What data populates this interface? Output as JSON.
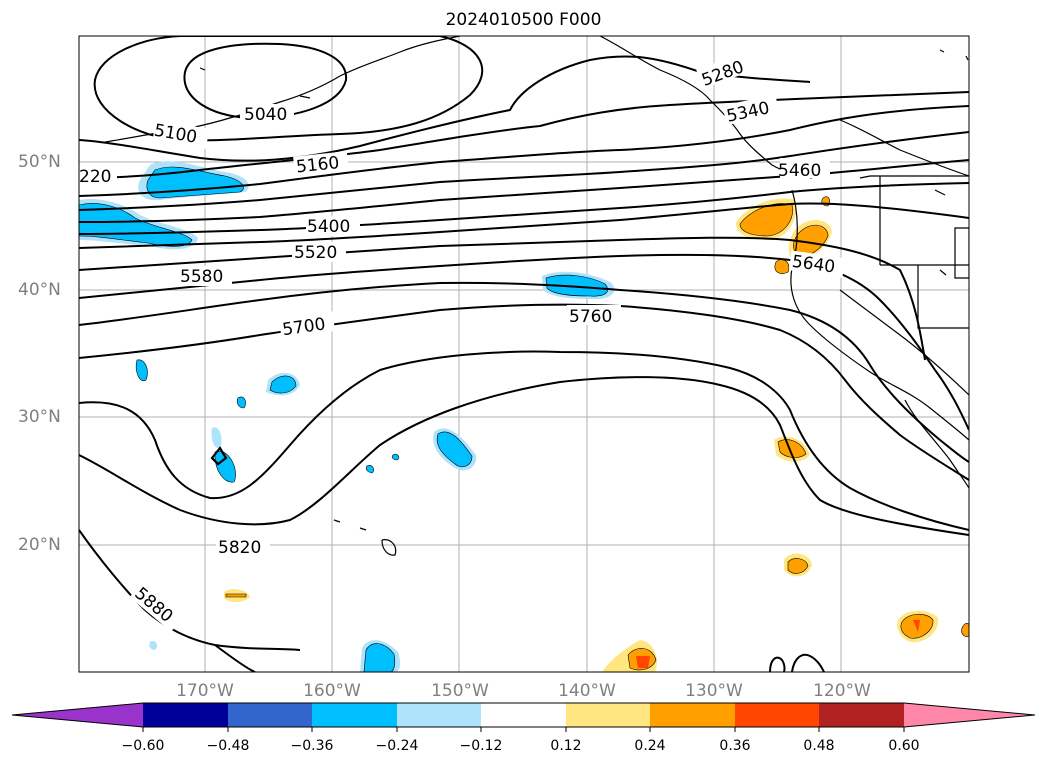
{
  "title": "2024010500 F000",
  "lat_labels": [
    "50°N",
    "40°N",
    "30°N",
    "20°N"
  ],
  "lon_labels": [
    "170°W",
    "160°W",
    "150°W",
    "140°W",
    "130°W",
    "120°W"
  ],
  "contour_labels": [
    "5040",
    "5100",
    "5160",
    "220",
    "5280",
    "5340",
    "5460",
    "5400",
    "5520",
    "5580",
    "5640",
    "5700",
    "5760",
    "5820",
    "5880"
  ],
  "colorbar": {
    "ticks": [
      "−0.60",
      "−0.48",
      "−0.36",
      "−0.24",
      "−0.12",
      "0.12",
      "0.24",
      "0.36",
      "0.48",
      "0.60"
    ],
    "colors": [
      "#9933cc",
      "#000099",
      "#3366cc",
      "#00bfff",
      "#aee3fb",
      "#ffffff",
      "#ffe680",
      "#ffa000",
      "#ff4500",
      "#b22222",
      "#ff88aa"
    ]
  }
}
